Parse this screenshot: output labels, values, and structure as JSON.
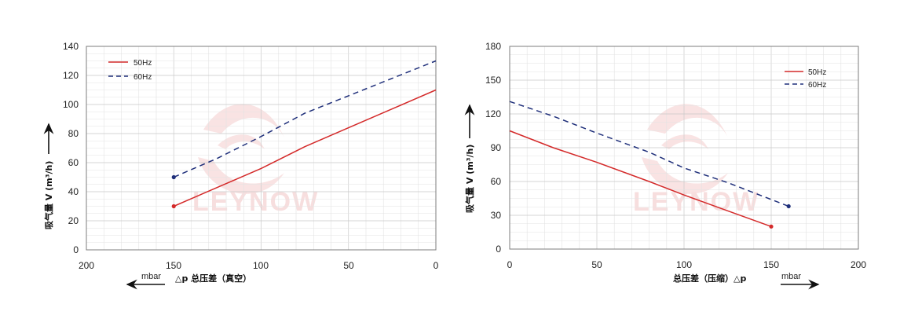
{
  "colors": {
    "series_50hz": "#d42a2a",
    "series_60hz": "#1f2f7a",
    "watermark": "#f7dede"
  },
  "watermark": "LEYNOW",
  "chart_data": [
    {
      "id": "vacuum",
      "type": "line",
      "title": "",
      "xlabel": "△p 总压差（真空）",
      "ylabel": "吸气量 V (m³/h)",
      "unit_label": "mbar",
      "xlim": [
        200,
        0
      ],
      "ylim": [
        0,
        140
      ],
      "x_reversed": true,
      "x_ticks": [
        "200",
        "150",
        "100",
        "50",
        "0"
      ],
      "y_ticks": [
        "0",
        "20",
        "40",
        "60",
        "80",
        "100",
        "120",
        "140"
      ],
      "x_tick_values": [
        200,
        150,
        100,
        50,
        0
      ],
      "y_tick_values": [
        0,
        20,
        40,
        60,
        80,
        100,
        120,
        140
      ],
      "grid": true,
      "legend_position": "top-left",
      "series": [
        {
          "name": "50Hz",
          "style": "solid",
          "color": "#d42a2a",
          "x": [
            150,
            125,
            100,
            75,
            50,
            25,
            0
          ],
          "y": [
            30,
            43,
            56,
            71,
            84,
            97,
            110
          ]
        },
        {
          "name": "60Hz",
          "style": "dashed",
          "color": "#1f2f7a",
          "x": [
            150,
            125,
            100,
            75,
            50,
            25,
            0
          ],
          "y": [
            50,
            63,
            78,
            94,
            106,
            118,
            130
          ]
        }
      ]
    },
    {
      "id": "pressure",
      "type": "line",
      "title": "",
      "xlabel": "总压差（压缩）△p",
      "ylabel": "吸气量 V (m³/h)",
      "unit_label": "mbar",
      "xlim": [
        0,
        200
      ],
      "ylim": [
        0,
        180
      ],
      "x_reversed": false,
      "x_ticks": [
        "0",
        "50",
        "100",
        "150",
        "200"
      ],
      "y_ticks": [
        "0",
        "30",
        "60",
        "90",
        "120",
        "150",
        "180"
      ],
      "x_tick_values": [
        0,
        50,
        100,
        150,
        200
      ],
      "y_tick_values": [
        0,
        30,
        60,
        90,
        120,
        150,
        180
      ],
      "grid": true,
      "legend_position": "top-right",
      "series": [
        {
          "name": "50Hz",
          "style": "solid",
          "color": "#d42a2a",
          "x": [
            0,
            25,
            50,
            80,
            100,
            125,
            150
          ],
          "y": [
            105,
            90,
            77,
            60,
            48,
            34,
            20
          ]
        },
        {
          "name": "60Hz",
          "style": "dashed",
          "color": "#1f2f7a",
          "x": [
            0,
            25,
            50,
            80,
            100,
            125,
            160
          ],
          "y": [
            131,
            118,
            103,
            86,
            72,
            59,
            38
          ]
        }
      ]
    }
  ]
}
